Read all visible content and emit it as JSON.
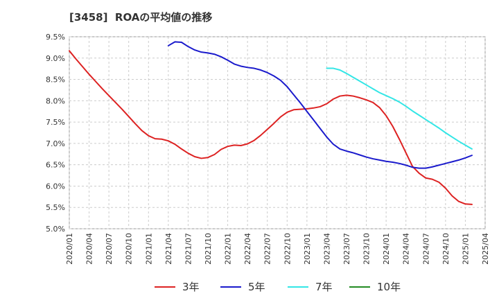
{
  "chart_data": {
    "type": "line",
    "title": "[3458]  ROAの平均値の推移",
    "xlabel": "",
    "ylabel": "",
    "ylim": [
      5.0,
      9.5
    ],
    "y_ticks": [
      "5.0%",
      "5.5%",
      "6.0%",
      "6.5%",
      "7.0%",
      "7.5%",
      "8.0%",
      "8.5%",
      "9.0%",
      "9.5%"
    ],
    "x_ticks": [
      "2020/01",
      "2020/04",
      "2020/07",
      "2020/10",
      "2021/01",
      "2021/04",
      "2021/07",
      "2021/10",
      "2022/01",
      "2022/04",
      "2022/07",
      "2022/10",
      "2023/01",
      "2023/04",
      "2023/07",
      "2023/10",
      "2024/01",
      "2024/04",
      "2024/07",
      "2024/10",
      "2025/01",
      "2025/04"
    ],
    "grid": true,
    "legend_position": "bottom",
    "series": [
      {
        "name": "3年",
        "color": "#dd2222",
        "points": [
          [
            "2020/01",
            9.17
          ],
          [
            "2020/02",
            8.98
          ],
          [
            "2020/03",
            8.8
          ],
          [
            "2020/04",
            8.62
          ],
          [
            "2020/05",
            8.45
          ],
          [
            "2020/06",
            8.28
          ],
          [
            "2020/07",
            8.12
          ],
          [
            "2020/08",
            7.96
          ],
          [
            "2020/09",
            7.8
          ],
          [
            "2020/10",
            7.63
          ],
          [
            "2020/11",
            7.46
          ],
          [
            "2020/12",
            7.3
          ],
          [
            "2021/01",
            7.18
          ],
          [
            "2021/02",
            7.11
          ],
          [
            "2021/03",
            7.1
          ],
          [
            "2021/04",
            7.06
          ],
          [
            "2021/05",
            6.98
          ],
          [
            "2021/06",
            6.87
          ],
          [
            "2021/07",
            6.77
          ],
          [
            "2021/08",
            6.69
          ],
          [
            "2021/09",
            6.65
          ],
          [
            "2021/10",
            6.67
          ],
          [
            "2021/11",
            6.74
          ],
          [
            "2021/12",
            6.86
          ],
          [
            "2022/01",
            6.93
          ],
          [
            "2022/02",
            6.96
          ],
          [
            "2022/03",
            6.95
          ],
          [
            "2022/04",
            6.99
          ],
          [
            "2022/05",
            7.07
          ],
          [
            "2022/06",
            7.19
          ],
          [
            "2022/07",
            7.33
          ],
          [
            "2022/08",
            7.47
          ],
          [
            "2022/09",
            7.62
          ],
          [
            "2022/10",
            7.73
          ],
          [
            "2022/11",
            7.79
          ],
          [
            "2022/12",
            7.8
          ],
          [
            "2023/01",
            7.81
          ],
          [
            "2023/02",
            7.83
          ],
          [
            "2023/03",
            7.86
          ],
          [
            "2023/04",
            7.93
          ],
          [
            "2023/05",
            8.04
          ],
          [
            "2023/06",
            8.11
          ],
          [
            "2023/07",
            8.13
          ],
          [
            "2023/08",
            8.11
          ],
          [
            "2023/09",
            8.07
          ],
          [
            "2023/10",
            8.02
          ],
          [
            "2023/11",
            7.96
          ],
          [
            "2023/12",
            7.84
          ],
          [
            "2024/01",
            7.65
          ],
          [
            "2024/02",
            7.4
          ],
          [
            "2024/03",
            7.1
          ],
          [
            "2024/04",
            6.78
          ],
          [
            "2024/05",
            6.46
          ],
          [
            "2024/06",
            6.3
          ],
          [
            "2024/07",
            6.19
          ],
          [
            "2024/08",
            6.16
          ],
          [
            "2024/09",
            6.09
          ],
          [
            "2024/10",
            5.95
          ],
          [
            "2024/11",
            5.77
          ],
          [
            "2024/12",
            5.64
          ],
          [
            "2025/01",
            5.58
          ],
          [
            "2025/02",
            5.57
          ]
        ]
      },
      {
        "name": "5年",
        "color": "#1a1acc",
        "points": [
          [
            "2021/04",
            9.29
          ],
          [
            "2021/05",
            9.38
          ],
          [
            "2021/06",
            9.37
          ],
          [
            "2021/07",
            9.27
          ],
          [
            "2021/08",
            9.19
          ],
          [
            "2021/09",
            9.14
          ],
          [
            "2021/10",
            9.12
          ],
          [
            "2021/11",
            9.09
          ],
          [
            "2021/12",
            9.03
          ],
          [
            "2022/01",
            8.95
          ],
          [
            "2022/02",
            8.86
          ],
          [
            "2022/03",
            8.81
          ],
          [
            "2022/04",
            8.78
          ],
          [
            "2022/05",
            8.76
          ],
          [
            "2022/06",
            8.72
          ],
          [
            "2022/07",
            8.66
          ],
          [
            "2022/08",
            8.58
          ],
          [
            "2022/09",
            8.48
          ],
          [
            "2022/10",
            8.33
          ],
          [
            "2022/11",
            8.14
          ],
          [
            "2022/12",
            7.95
          ],
          [
            "2023/01",
            7.75
          ],
          [
            "2023/02",
            7.55
          ],
          [
            "2023/03",
            7.35
          ],
          [
            "2023/04",
            7.15
          ],
          [
            "2023/05",
            6.98
          ],
          [
            "2023/06",
            6.87
          ],
          [
            "2023/07",
            6.82
          ],
          [
            "2023/08",
            6.78
          ],
          [
            "2023/09",
            6.73
          ],
          [
            "2023/10",
            6.68
          ],
          [
            "2023/11",
            6.64
          ],
          [
            "2023/12",
            6.61
          ],
          [
            "2024/01",
            6.58
          ],
          [
            "2024/02",
            6.56
          ],
          [
            "2024/03",
            6.53
          ],
          [
            "2024/04",
            6.49
          ],
          [
            "2024/05",
            6.44
          ],
          [
            "2024/06",
            6.42
          ],
          [
            "2024/07",
            6.42
          ],
          [
            "2024/08",
            6.45
          ],
          [
            "2024/09",
            6.49
          ],
          [
            "2024/10",
            6.53
          ],
          [
            "2024/11",
            6.57
          ],
          [
            "2024/12",
            6.61
          ],
          [
            "2025/01",
            6.66
          ],
          [
            "2025/02",
            6.72
          ]
        ]
      },
      {
        "name": "7年",
        "color": "#33e6e6",
        "points": [
          [
            "2023/04",
            8.76
          ],
          [
            "2023/05",
            8.76
          ],
          [
            "2023/06",
            8.72
          ],
          [
            "2023/07",
            8.64
          ],
          [
            "2023/08",
            8.55
          ],
          [
            "2023/09",
            8.46
          ],
          [
            "2023/10",
            8.37
          ],
          [
            "2023/11",
            8.28
          ],
          [
            "2023/12",
            8.19
          ],
          [
            "2024/01",
            8.12
          ],
          [
            "2024/02",
            8.05
          ],
          [
            "2024/03",
            7.97
          ],
          [
            "2024/04",
            7.87
          ],
          [
            "2024/05",
            7.76
          ],
          [
            "2024/06",
            7.66
          ],
          [
            "2024/07",
            7.56
          ],
          [
            "2024/08",
            7.46
          ],
          [
            "2024/09",
            7.36
          ],
          [
            "2024/10",
            7.25
          ],
          [
            "2024/11",
            7.15
          ],
          [
            "2024/12",
            7.05
          ],
          [
            "2025/01",
            6.96
          ],
          [
            "2025/02",
            6.87
          ]
        ]
      },
      {
        "name": "10年",
        "color": "#228b22",
        "points": []
      }
    ]
  }
}
